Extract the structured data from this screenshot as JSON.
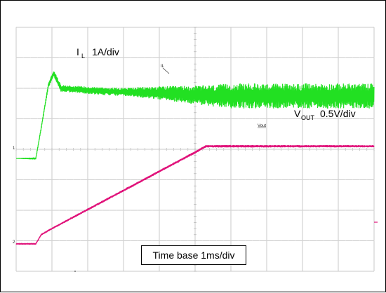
{
  "colors": {
    "il_trace": "#22e022",
    "vout_trace": "#e0127a",
    "grid": "#c9c9c9",
    "grid_dot": "#d9d9d9"
  },
  "labels": {
    "il_main": "I",
    "il_sub": "L",
    "il_scale": "1A/div",
    "vout_main": "V",
    "vout_sub": "OUT",
    "vout_scale": "0.5V/div",
    "il_marker": "IL",
    "vout_marker": "Vout",
    "ch1_marker": "1",
    "ch2_marker": "2",
    "timebase": "Time base 1ms/div"
  },
  "chart_data": {
    "type": "line",
    "time_per_div": "1ms/div",
    "divisions": {
      "x": 10,
      "y": 8
    },
    "series": [
      {
        "name": "IL",
        "scale": "1A/div",
        "color": "#22e022",
        "points": [
          [
            0.0,
            0.0
          ],
          [
            0.55,
            0.0
          ],
          [
            0.7,
            1.0
          ],
          [
            0.9,
            2.4
          ],
          [
            1.05,
            2.8
          ],
          [
            1.25,
            2.3
          ],
          [
            2.5,
            2.2
          ],
          [
            4.0,
            2.15
          ],
          [
            5.5,
            2.05
          ],
          [
            7.5,
            2.05
          ],
          [
            10.0,
            2.05
          ]
        ],
        "ripple_divs": [
          [
            0.0,
            0.0
          ],
          [
            0.55,
            0.05
          ],
          [
            1.1,
            0.2
          ],
          [
            3.0,
            0.25
          ],
          [
            4.8,
            0.55
          ],
          [
            6.0,
            0.8
          ],
          [
            10.0,
            0.8
          ]
        ]
      },
      {
        "name": "VOUT",
        "scale": "0.5V/div",
        "color": "#e0127a",
        "points": [
          [
            0.0,
            0.0
          ],
          [
            0.55,
            0.0
          ],
          [
            0.7,
            0.3
          ],
          [
            1.0,
            0.5
          ],
          [
            3.0,
            1.75
          ],
          [
            5.0,
            3.0
          ],
          [
            5.3,
            3.2
          ],
          [
            7.5,
            3.2
          ],
          [
            10.0,
            3.2
          ]
        ],
        "ripple_divs": [
          [
            0.0,
            0.03
          ],
          [
            2.0,
            0.05
          ],
          [
            5.0,
            0.06
          ],
          [
            10.0,
            0.05
          ]
        ]
      }
    ]
  }
}
